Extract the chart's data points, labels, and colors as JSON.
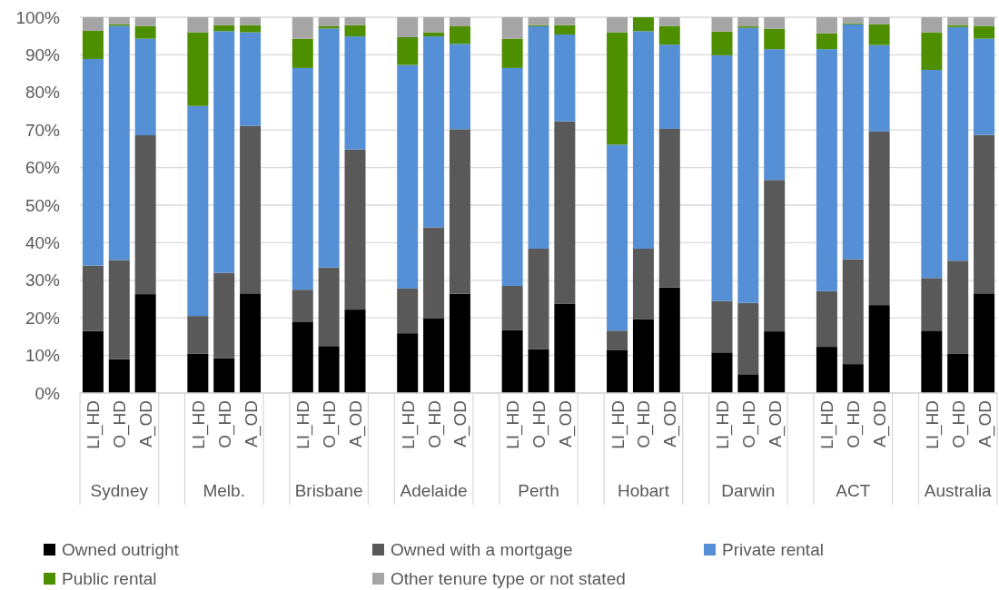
{
  "chart_data": {
    "type": "bar",
    "stacked": true,
    "categories": [
      "LI_HD",
      "O_HD",
      "A_OD",
      null,
      "LI_HD",
      "O_HD",
      "A_OD",
      null,
      "LI_HD",
      "O_HD",
      "A_OD",
      null,
      "LI_HD",
      "O_HD",
      "A_OD",
      null,
      "LI_HD",
      "O_HD",
      "A_OD",
      null,
      "LI_HD",
      "O_HD",
      "A_OD",
      null,
      "LI_HD",
      "O_HD",
      "A_OD",
      null,
      "LI_HD",
      "O_HD",
      "A_OD",
      null,
      "LI_HD",
      "O_HD",
      "A_OD"
    ],
    "annotations": [
      "Sydney",
      "Melb.",
      "Brisbane",
      "Adelaide",
      "Perth",
      "Hobart",
      "Darwin",
      "ACT",
      "Australia"
    ],
    "series": [
      {
        "name": "Owned outright",
        "color": "#000000",
        "values": [
          16.5,
          9.0,
          26.3,
          null,
          10.5,
          9.3,
          26.5,
          null,
          19.0,
          12.5,
          22.2,
          null,
          15.9,
          19.8,
          26.4,
          null,
          16.7,
          11.7,
          23.8,
          null,
          11.5,
          19.6,
          28.1,
          null,
          10.8,
          5.0,
          16.4,
          null,
          12.3,
          7.7,
          23.4,
          null,
          16.6,
          10.4,
          26.5
        ]
      },
      {
        "name": "Owned with a mortgage",
        "color": "#595959",
        "values": [
          17.4,
          26.4,
          42.3,
          null,
          10.0,
          22.7,
          44.6,
          null,
          8.5,
          20.9,
          42.6,
          null,
          11.9,
          24.3,
          43.8,
          null,
          11.8,
          26.7,
          48.5,
          null,
          5.1,
          18.8,
          42.2,
          null,
          13.7,
          19.0,
          40.3,
          null,
          14.8,
          27.9,
          46.2,
          null,
          14.0,
          24.8,
          42.2
        ]
      },
      {
        "name": "Private rental",
        "color": "#558fd6",
        "values": [
          55.0,
          62.3,
          25.7,
          null,
          55.9,
          64.3,
          24.9,
          null,
          59.0,
          63.6,
          30.1,
          null,
          59.5,
          50.8,
          22.7,
          null,
          58.0,
          59.2,
          23.1,
          null,
          49.5,
          57.9,
          22.4,
          null,
          65.4,
          73.2,
          34.8,
          null,
          64.4,
          62.5,
          23.0,
          null,
          55.4,
          62.2,
          25.6
        ]
      },
      {
        "name": "Public rental",
        "color": "#4e8f00",
        "values": [
          7.5,
          0.4,
          3.4,
          null,
          19.6,
          1.6,
          1.9,
          null,
          7.8,
          0.6,
          3.0,
          null,
          7.4,
          1.1,
          4.7,
          null,
          7.8,
          0.3,
          2.5,
          null,
          29.9,
          3.7,
          5.0,
          null,
          6.3,
          0.4,
          5.4,
          null,
          4.2,
          0.3,
          5.5,
          null,
          10.0,
          0.5,
          3.4
        ]
      },
      {
        "name": "Other tenure type or not stated",
        "color": "#a5a5a5",
        "values": [
          3.6,
          1.9,
          2.3,
          null,
          4.0,
          2.1,
          2.1,
          null,
          5.7,
          2.4,
          2.1,
          null,
          5.3,
          4.0,
          2.4,
          null,
          5.7,
          2.1,
          2.1,
          null,
          4.0,
          0,
          2.3,
          null,
          3.8,
          2.4,
          3.1,
          null,
          4.3,
          1.6,
          1.9,
          null,
          4.0,
          2.1,
          2.3
        ]
      }
    ],
    "ylim": [
      0,
      100
    ],
    "yticks": [
      {
        "value": 0,
        "label": "0%"
      },
      {
        "value": 10,
        "label": "10%"
      },
      {
        "value": 20,
        "label": "20%"
      },
      {
        "value": 30,
        "label": "30%"
      },
      {
        "value": 40,
        "label": "40%"
      },
      {
        "value": 50,
        "label": "50%"
      },
      {
        "value": 60,
        "label": "60%"
      },
      {
        "value": 70,
        "label": "70%"
      },
      {
        "value": 80,
        "label": "80%"
      },
      {
        "value": 90,
        "label": "90%"
      },
      {
        "value": 100,
        "label": "100%"
      }
    ],
    "grid": "y",
    "legend": "bottom"
  }
}
